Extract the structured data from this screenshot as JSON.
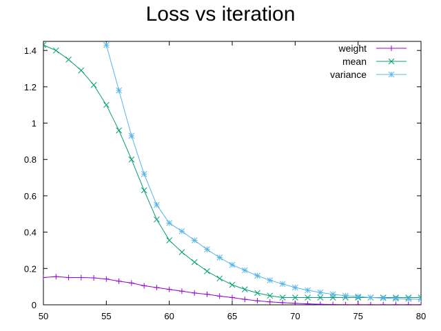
{
  "chart_data": {
    "type": "line",
    "title": "Loss vs iteration",
    "xlabel": "",
    "ylabel": "",
    "xlim": [
      50,
      80
    ],
    "ylim": [
      0,
      1.45
    ],
    "x_ticks": [
      "50",
      "55",
      "60",
      "65",
      "70",
      "75",
      "80"
    ],
    "y_ticks": [
      "0",
      "0.2",
      "0.4",
      "0.6",
      "0.8",
      "1",
      "1.2",
      "1.4"
    ],
    "grid": false,
    "legend_position": "top-right",
    "x": [
      50,
      51,
      52,
      53,
      54,
      55,
      56,
      57,
      58,
      59,
      60,
      61,
      62,
      63,
      64,
      65,
      66,
      67,
      68,
      69,
      70,
      71,
      72,
      73,
      74,
      75,
      76,
      77,
      78,
      79,
      80
    ],
    "series": [
      {
        "name": "weight",
        "color": "#9400d3",
        "marker": "plus",
        "values": [
          0.15,
          0.155,
          0.15,
          0.15,
          0.148,
          0.142,
          0.13,
          0.12,
          0.105,
          0.095,
          0.085,
          0.075,
          0.065,
          0.058,
          0.048,
          0.04,
          0.03,
          0.022,
          0.016,
          0.012,
          0.008,
          0.005,
          0.003,
          0.002,
          0.001,
          0.001,
          0.001,
          0.001,
          0.001,
          0.001,
          0.001
        ]
      },
      {
        "name": "mean",
        "color": "#009e73",
        "marker": "cross",
        "values": [
          1.43,
          1.4,
          1.35,
          1.29,
          1.21,
          1.1,
          0.96,
          0.8,
          0.63,
          0.47,
          0.355,
          0.29,
          0.235,
          0.185,
          0.145,
          0.11,
          0.085,
          0.065,
          0.05,
          0.04,
          0.04,
          0.04,
          0.04,
          0.04,
          0.04,
          0.04,
          0.04,
          0.04,
          0.04,
          0.04,
          0.04
        ]
      },
      {
        "name": "variance",
        "color": "#56b4e9",
        "marker": "star",
        "values": [
          null,
          null,
          null,
          null,
          null,
          1.43,
          1.18,
          0.93,
          0.72,
          0.55,
          0.45,
          0.405,
          0.355,
          0.305,
          0.26,
          0.22,
          0.19,
          0.16,
          0.135,
          0.115,
          0.095,
          0.08,
          0.068,
          0.058,
          0.05,
          0.045,
          0.04,
          0.037,
          0.034,
          0.032,
          0.03
        ]
      }
    ]
  }
}
